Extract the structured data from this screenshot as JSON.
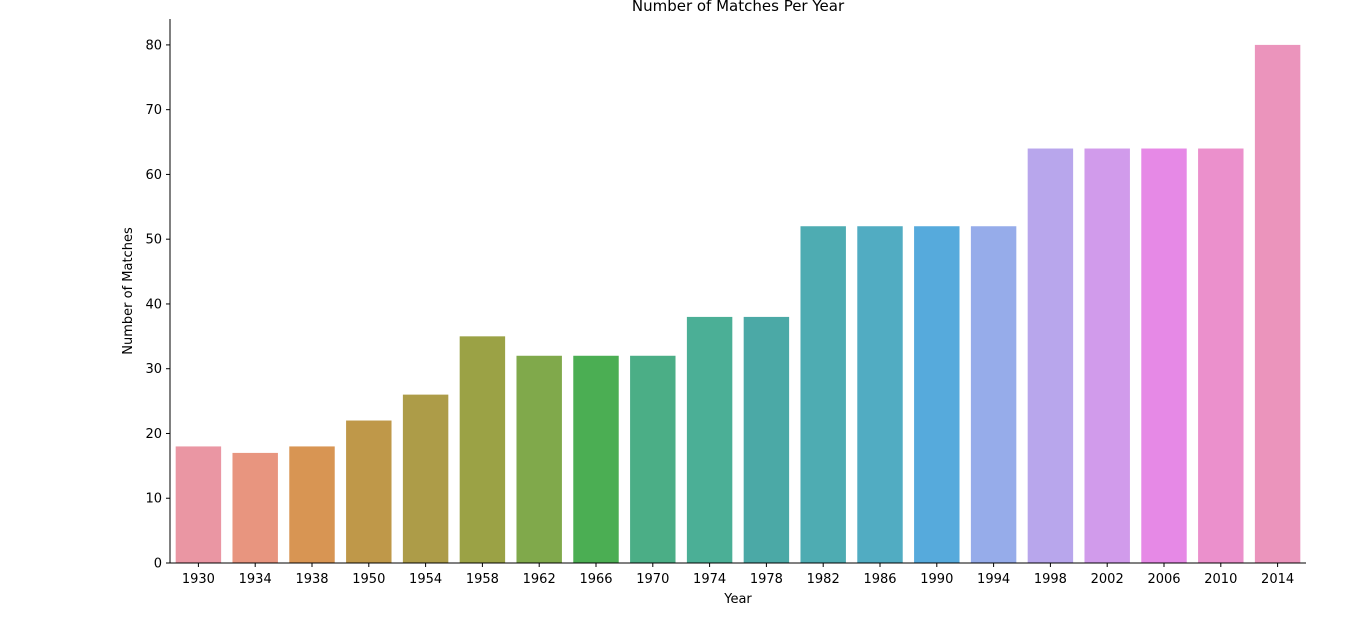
{
  "chart_data": {
    "type": "bar",
    "title": "Number of Matches Per Year",
    "xlabel": "Year",
    "ylabel": "Number of Matches",
    "ylim": [
      0,
      84
    ],
    "yticks": [
      0,
      10,
      20,
      30,
      40,
      50,
      60,
      70,
      80
    ],
    "grid": false,
    "categories": [
      "1930",
      "1934",
      "1938",
      "1950",
      "1954",
      "1958",
      "1962",
      "1966",
      "1970",
      "1974",
      "1978",
      "1982",
      "1986",
      "1990",
      "1994",
      "1998",
      "2002",
      "2006",
      "2010",
      "2014"
    ],
    "values": [
      18,
      17,
      18,
      22,
      26,
      35,
      32,
      32,
      32,
      38,
      38,
      52,
      52,
      52,
      52,
      64,
      64,
      64,
      64,
      80
    ],
    "colors": [
      "#ea96a3",
      "#e8957f",
      "#d89553",
      "#bf9849",
      "#ad9c48",
      "#9ba245",
      "#80a94b",
      "#4bae53",
      "#4bae86",
      "#4baf96",
      "#4ba9a6",
      "#4eacb2",
      "#51acc2",
      "#56aadc",
      "#96acea",
      "#b8a6ec",
      "#d19beb",
      "#e689e6",
      "#eb90cc",
      "#eb94bc"
    ]
  }
}
